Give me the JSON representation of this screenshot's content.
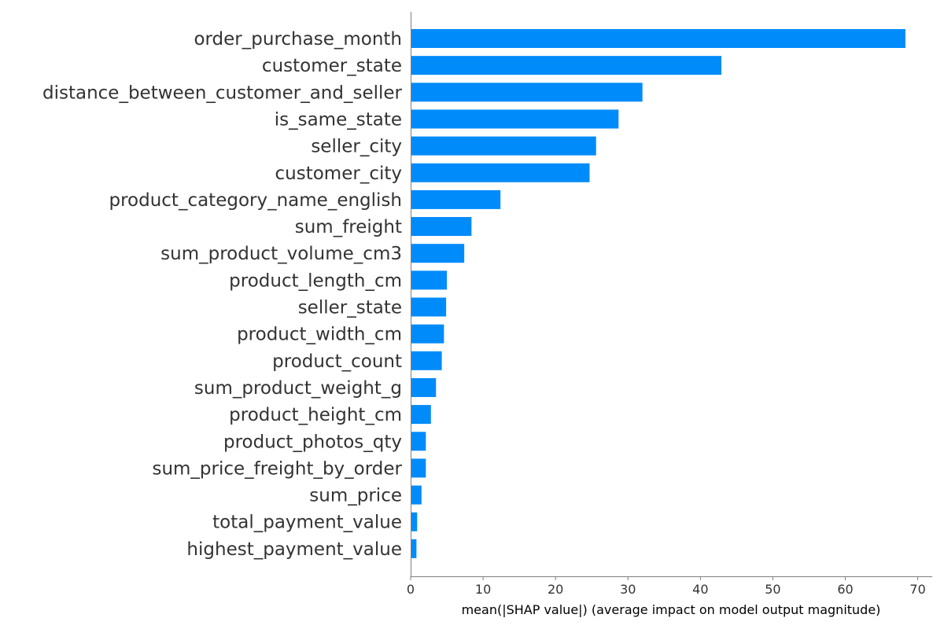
{
  "chart_data": {
    "type": "bar",
    "orientation": "horizontal",
    "categories": [
      "order_purchase_month",
      "customer_state",
      "distance_between_customer_and_seller",
      "is_same_state",
      "seller_city",
      "customer_city",
      "product_category_name_english",
      "sum_freight",
      "sum_product_volume_cm3",
      "product_length_cm",
      "seller_state",
      "product_width_cm",
      "product_count",
      "sum_product_weight_g",
      "product_height_cm",
      "product_photos_qty",
      "sum_price_freight_by_order",
      "sum_price",
      "total_payment_value",
      "highest_payment_value"
    ],
    "values": [
      68.3,
      42.9,
      32.0,
      28.7,
      25.6,
      24.7,
      12.4,
      8.4,
      7.4,
      5.0,
      4.9,
      4.6,
      4.3,
      3.5,
      2.8,
      2.1,
      2.1,
      1.5,
      0.9,
      0.8
    ],
    "title": "",
    "xlabel": "mean(|SHAP value|) (average impact on model output magnitude)",
    "ylabel": "",
    "xlim": [
      0,
      72
    ],
    "xticks": [
      0,
      10,
      20,
      30,
      40,
      50,
      60,
      70
    ],
    "grid": false,
    "legend": "none",
    "bar_color": "#008bfb",
    "text_color": "#333333",
    "axis_color": "#7f7f7f"
  }
}
